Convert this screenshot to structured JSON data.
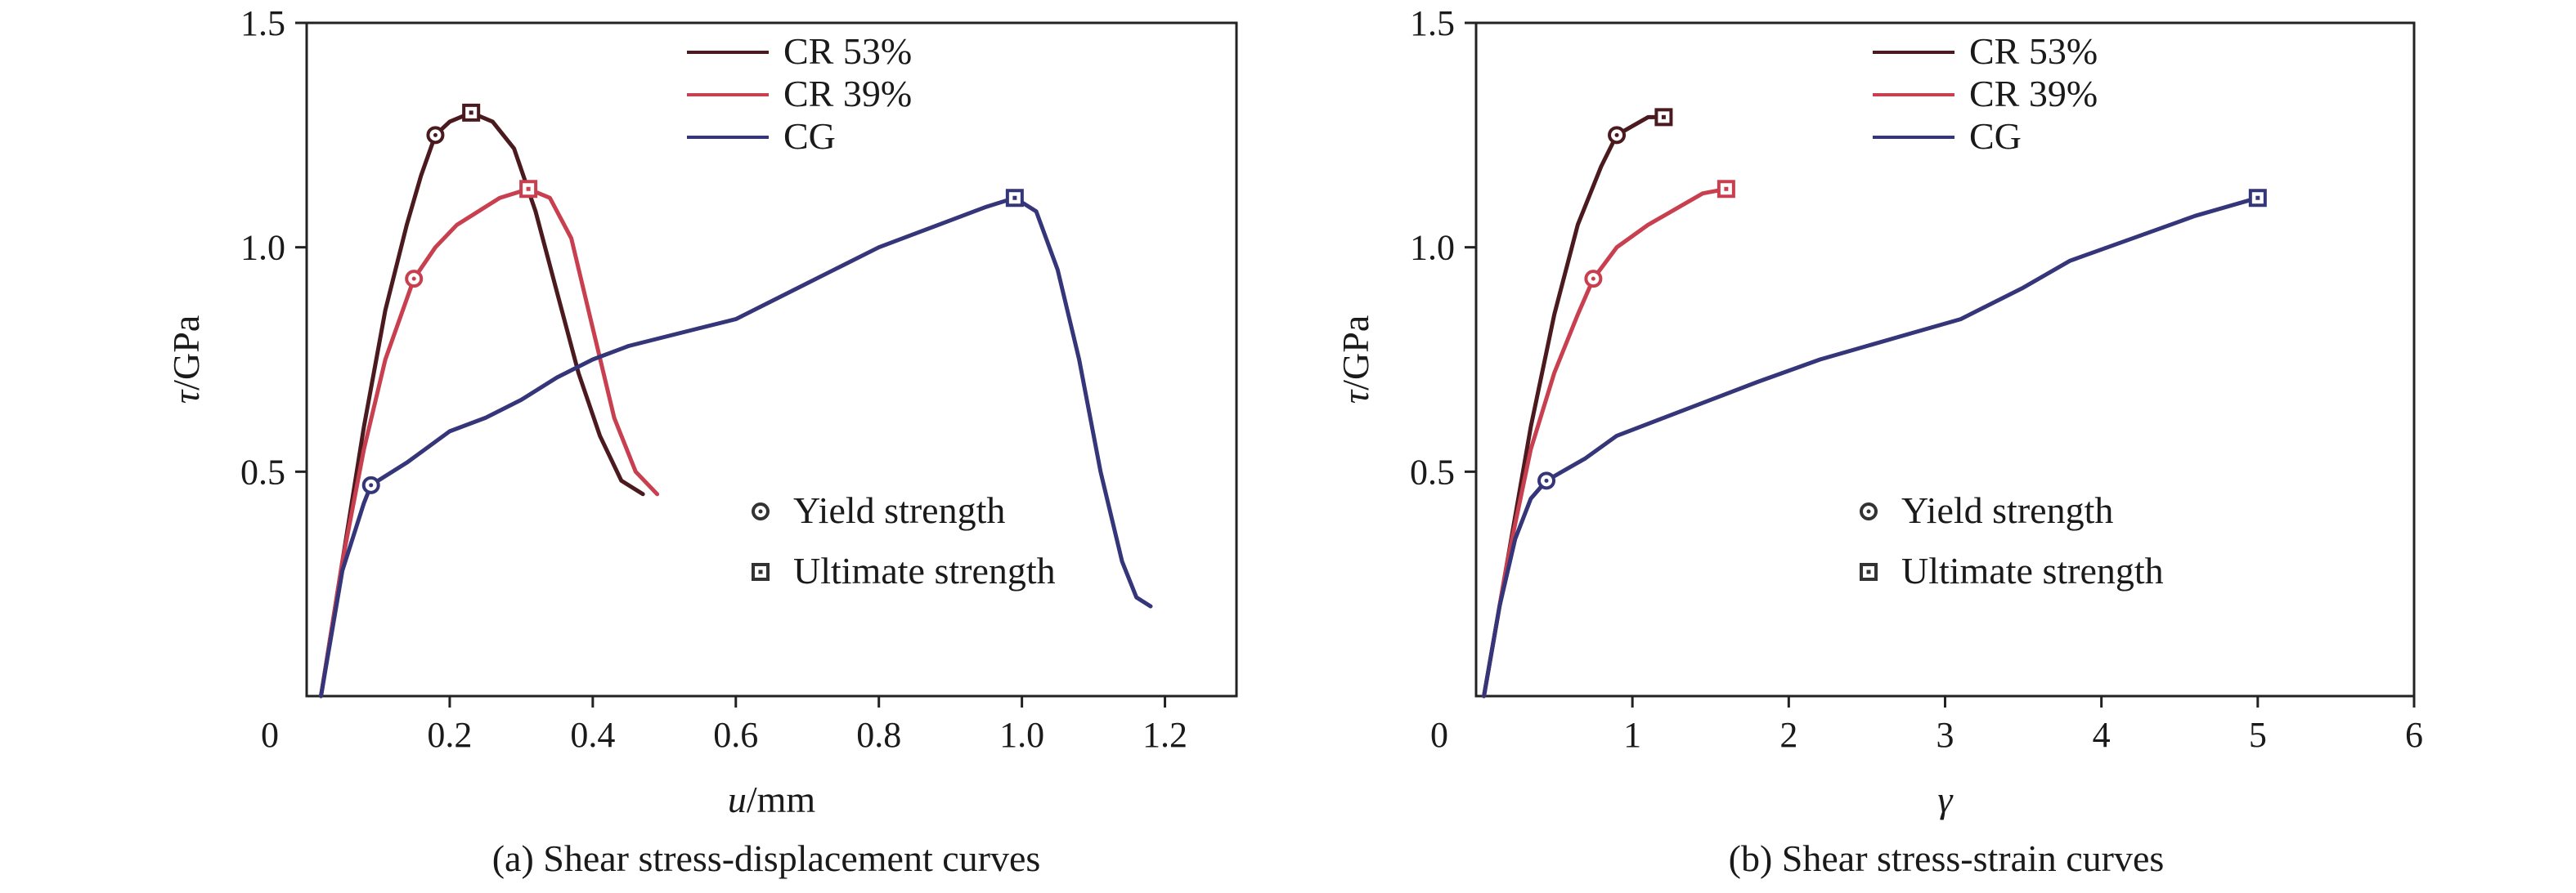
{
  "colors": {
    "cr53": "#4a1a1e",
    "cr39": "#c8404f",
    "cg": "#35357a",
    "axis": "#222222"
  },
  "chart_data": [
    {
      "type": "line",
      "caption": "(a) Shear stress-displacement curves",
      "xlabel_symbol": "u",
      "xlabel_unit": "/mm",
      "ylabel_symbol": "τ",
      "ylabel_unit": "/GPa",
      "xlim": [
        0,
        1.3
      ],
      "ylim": [
        0,
        1.5
      ],
      "xticks": [
        0.2,
        0.4,
        0.6,
        0.8,
        1.0,
        1.2
      ],
      "xtick_labels": [
        "0.2",
        "0.4",
        "0.6",
        "0.8",
        "1.0",
        "1.2"
      ],
      "yticks": [
        0.5,
        1.0,
        1.5
      ],
      "ytick_labels": [
        "0.5",
        "1.0",
        "1.5"
      ],
      "origin_label": "0",
      "legend": {
        "position": "top-center",
        "entries": [
          "CR 53%",
          "CR 39%",
          "CG"
        ]
      },
      "marker_legend": {
        "position": "center-right",
        "yield": "Yield strength",
        "ultimate": "Ultimate strength"
      },
      "series": [
        {
          "name": "CR 53%",
          "color_key": "cr53",
          "points": [
            [
              0.02,
              0.0
            ],
            [
              0.05,
              0.3
            ],
            [
              0.08,
              0.6
            ],
            [
              0.11,
              0.86
            ],
            [
              0.14,
              1.05
            ],
            [
              0.16,
              1.16
            ],
            [
              0.18,
              1.25
            ],
            [
              0.2,
              1.28
            ],
            [
              0.23,
              1.3
            ],
            [
              0.26,
              1.28
            ],
            [
              0.29,
              1.22
            ],
            [
              0.32,
              1.08
            ],
            [
              0.35,
              0.9
            ],
            [
              0.38,
              0.72
            ],
            [
              0.41,
              0.58
            ],
            [
              0.44,
              0.48
            ],
            [
              0.47,
              0.45
            ]
          ],
          "yield": [
            0.18,
            1.25
          ],
          "ultimate": [
            0.23,
            1.3
          ]
        },
        {
          "name": "CR 39%",
          "color_key": "cr39",
          "points": [
            [
              0.02,
              0.0
            ],
            [
              0.05,
              0.3
            ],
            [
              0.08,
              0.55
            ],
            [
              0.11,
              0.75
            ],
            [
              0.15,
              0.93
            ],
            [
              0.18,
              1.0
            ],
            [
              0.21,
              1.05
            ],
            [
              0.24,
              1.08
            ],
            [
              0.27,
              1.11
            ],
            [
              0.31,
              1.13
            ],
            [
              0.34,
              1.11
            ],
            [
              0.37,
              1.02
            ],
            [
              0.4,
              0.82
            ],
            [
              0.43,
              0.62
            ],
            [
              0.46,
              0.5
            ],
            [
              0.49,
              0.45
            ]
          ],
          "yield": [
            0.15,
            0.93
          ],
          "ultimate": [
            0.31,
            1.13
          ]
        },
        {
          "name": "CG",
          "color_key": "cg",
          "points": [
            [
              0.02,
              0.0
            ],
            [
              0.05,
              0.28
            ],
            [
              0.08,
              0.43
            ],
            [
              0.09,
              0.47
            ],
            [
              0.14,
              0.52
            ],
            [
              0.2,
              0.59
            ],
            [
              0.25,
              0.62
            ],
            [
              0.3,
              0.66
            ],
            [
              0.35,
              0.71
            ],
            [
              0.4,
              0.75
            ],
            [
              0.45,
              0.78
            ],
            [
              0.5,
              0.8
            ],
            [
              0.55,
              0.82
            ],
            [
              0.6,
              0.84
            ],
            [
              0.65,
              0.88
            ],
            [
              0.7,
              0.92
            ],
            [
              0.75,
              0.96
            ],
            [
              0.8,
              1.0
            ],
            [
              0.85,
              1.03
            ],
            [
              0.9,
              1.06
            ],
            [
              0.95,
              1.09
            ],
            [
              0.99,
              1.11
            ],
            [
              1.02,
              1.08
            ],
            [
              1.05,
              0.95
            ],
            [
              1.08,
              0.75
            ],
            [
              1.11,
              0.5
            ],
            [
              1.14,
              0.3
            ],
            [
              1.16,
              0.22
            ],
            [
              1.18,
              0.2
            ]
          ],
          "yield": [
            0.09,
            0.47
          ],
          "ultimate": [
            0.99,
            1.11
          ]
        }
      ]
    },
    {
      "type": "line",
      "caption": "(b) Shear stress-strain curves",
      "xlabel_symbol": "γ",
      "xlabel_unit": "",
      "ylabel_symbol": "τ",
      "ylabel_unit": "/GPa",
      "xlim": [
        0,
        6
      ],
      "ylim": [
        0,
        1.5
      ],
      "xticks": [
        1,
        2,
        3,
        4,
        5,
        6
      ],
      "xtick_labels": [
        "1",
        "2",
        "3",
        "4",
        "5",
        "6"
      ],
      "yticks": [
        0.5,
        1.0,
        1.5
      ],
      "ytick_labels": [
        "0.5",
        "1.0",
        "1.5"
      ],
      "origin_label": "0",
      "legend": {
        "position": "top-right",
        "entries": [
          "CR 53%",
          "CR 39%",
          "CG"
        ]
      },
      "marker_legend": {
        "position": "center-right",
        "yield": "Yield strength",
        "ultimate": "Ultimate strength"
      },
      "series": [
        {
          "name": "CR 53%",
          "color_key": "cr53",
          "points": [
            [
              0.05,
              0.0
            ],
            [
              0.2,
              0.3
            ],
            [
              0.35,
              0.6
            ],
            [
              0.5,
              0.85
            ],
            [
              0.65,
              1.05
            ],
            [
              0.8,
              1.18
            ],
            [
              0.9,
              1.25
            ],
            [
              1.0,
              1.27
            ],
            [
              1.1,
              1.29
            ],
            [
              1.2,
              1.29
            ]
          ],
          "yield": [
            0.9,
            1.25
          ],
          "ultimate": [
            1.2,
            1.29
          ]
        },
        {
          "name": "CR 39%",
          "color_key": "cr39",
          "points": [
            [
              0.05,
              0.0
            ],
            [
              0.2,
              0.3
            ],
            [
              0.35,
              0.55
            ],
            [
              0.5,
              0.72
            ],
            [
              0.65,
              0.85
            ],
            [
              0.75,
              0.93
            ],
            [
              0.9,
              1.0
            ],
            [
              1.1,
              1.05
            ],
            [
              1.3,
              1.09
            ],
            [
              1.45,
              1.12
            ],
            [
              1.6,
              1.13
            ]
          ],
          "yield": [
            0.75,
            0.93
          ],
          "ultimate": [
            1.6,
            1.13
          ]
        },
        {
          "name": "CG",
          "color_key": "cg",
          "points": [
            [
              0.05,
              0.0
            ],
            [
              0.15,
              0.2
            ],
            [
              0.25,
              0.35
            ],
            [
              0.35,
              0.44
            ],
            [
              0.45,
              0.48
            ],
            [
              0.7,
              0.53
            ],
            [
              0.9,
              0.58
            ],
            [
              1.2,
              0.62
            ],
            [
              1.5,
              0.66
            ],
            [
              1.8,
              0.7
            ],
            [
              2.2,
              0.75
            ],
            [
              2.5,
              0.78
            ],
            [
              2.8,
              0.81
            ],
            [
              3.1,
              0.84
            ],
            [
              3.5,
              0.91
            ],
            [
              3.8,
              0.97
            ],
            [
              4.2,
              1.02
            ],
            [
              4.6,
              1.07
            ],
            [
              5.0,
              1.11
            ]
          ],
          "yield": [
            0.45,
            0.48
          ],
          "ultimate": [
            5.0,
            1.11
          ]
        }
      ]
    }
  ]
}
